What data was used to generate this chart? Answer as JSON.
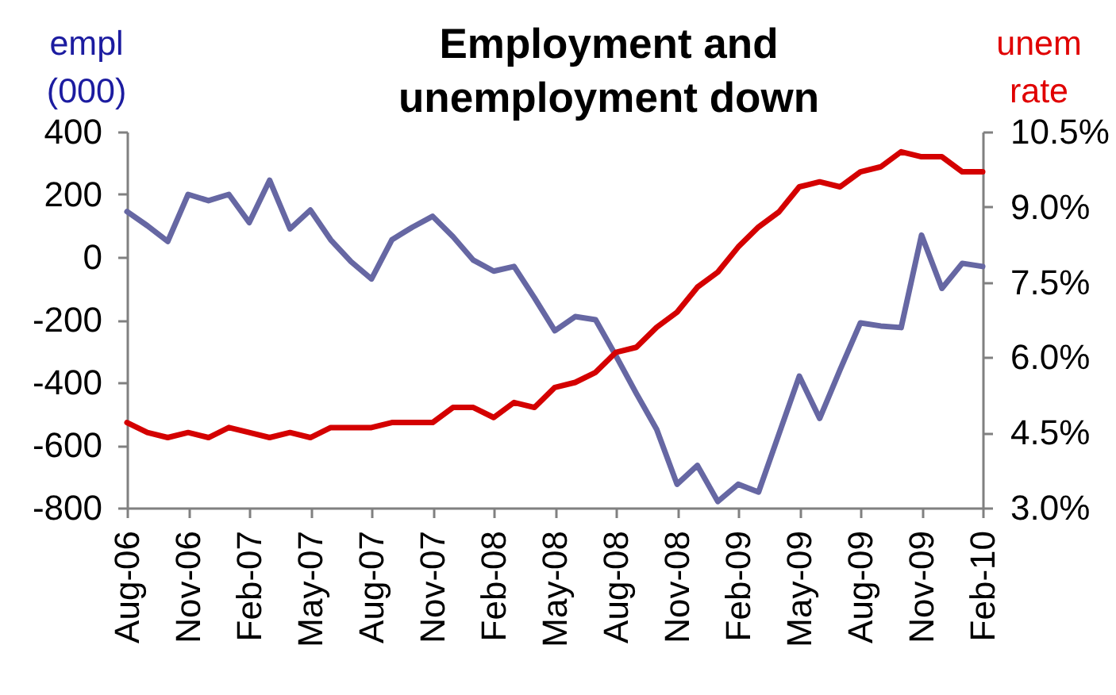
{
  "chart_data": {
    "type": "line",
    "title": "Employment and unemployment down",
    "ylabel": "empl (000)",
    "y2label": "unem rate",
    "categories": [
      "Aug-06",
      null,
      null,
      "Nov-06",
      null,
      null,
      "Feb-07",
      null,
      null,
      "May-07",
      null,
      null,
      "Aug-07",
      null,
      null,
      "Nov-07",
      null,
      null,
      "Feb-08",
      null,
      null,
      "May-08",
      null,
      null,
      "Aug-08",
      null,
      null,
      "Nov-08",
      null,
      null,
      "Feb-09",
      null,
      null,
      "May-09",
      null,
      null,
      "Aug-09",
      null,
      null,
      "Nov-09",
      null,
      null,
      "Feb-10"
    ],
    "series": [
      {
        "color": "#6667a3",
        "values": [
          145,
          100,
          50,
          200,
          180,
          200,
          110,
          245,
          90,
          150,
          55,
          -15,
          -70,
          55,
          95,
          130,
          65,
          -10,
          -45,
          -30,
          -130,
          -235,
          -190,
          -200,
          -315,
          -435,
          -550,
          -725,
          -665,
          -780,
          -725,
          -750,
          -565,
          -380,
          -515,
          -360,
          -210,
          -220,
          -225,
          70,
          -100,
          -20,
          -30
        ]
      },
      {
        "color": "#d40000",
        "axis": "y2",
        "values": [
          4.7,
          4.5,
          4.4,
          4.5,
          4.4,
          4.6,
          4.5,
          4.4,
          4.5,
          4.4,
          4.6,
          4.6,
          4.6,
          4.7,
          4.7,
          4.7,
          5.0,
          5.0,
          4.8,
          5.1,
          5.0,
          5.4,
          5.5,
          5.7,
          6.1,
          6.2,
          6.6,
          6.9,
          7.4,
          7.7,
          8.2,
          8.6,
          8.9,
          9.4,
          9.5,
          9.4,
          9.7,
          9.8,
          10.1,
          10.0,
          10.0,
          9.7,
          9.7
        ]
      }
    ],
    "ylim": [
      -800,
      400
    ],
    "yticks": [
      -800,
      -600,
      -400,
      -200,
      0,
      200,
      400
    ],
    "y2lim": [
      3.0,
      10.5
    ],
    "y2ticks": [
      {
        "value": 3.0,
        "label": "3.0%"
      },
      {
        "value": 4.5,
        "label": "4.5%"
      },
      {
        "value": 6.0,
        "label": "6.0%"
      },
      {
        "value": 7.5,
        "label": "7.5%"
      },
      {
        "value": 9.0,
        "label": "9.0%"
      },
      {
        "value": 10.5,
        "label": "10.5%"
      }
    ],
    "line_style": "solid"
  }
}
